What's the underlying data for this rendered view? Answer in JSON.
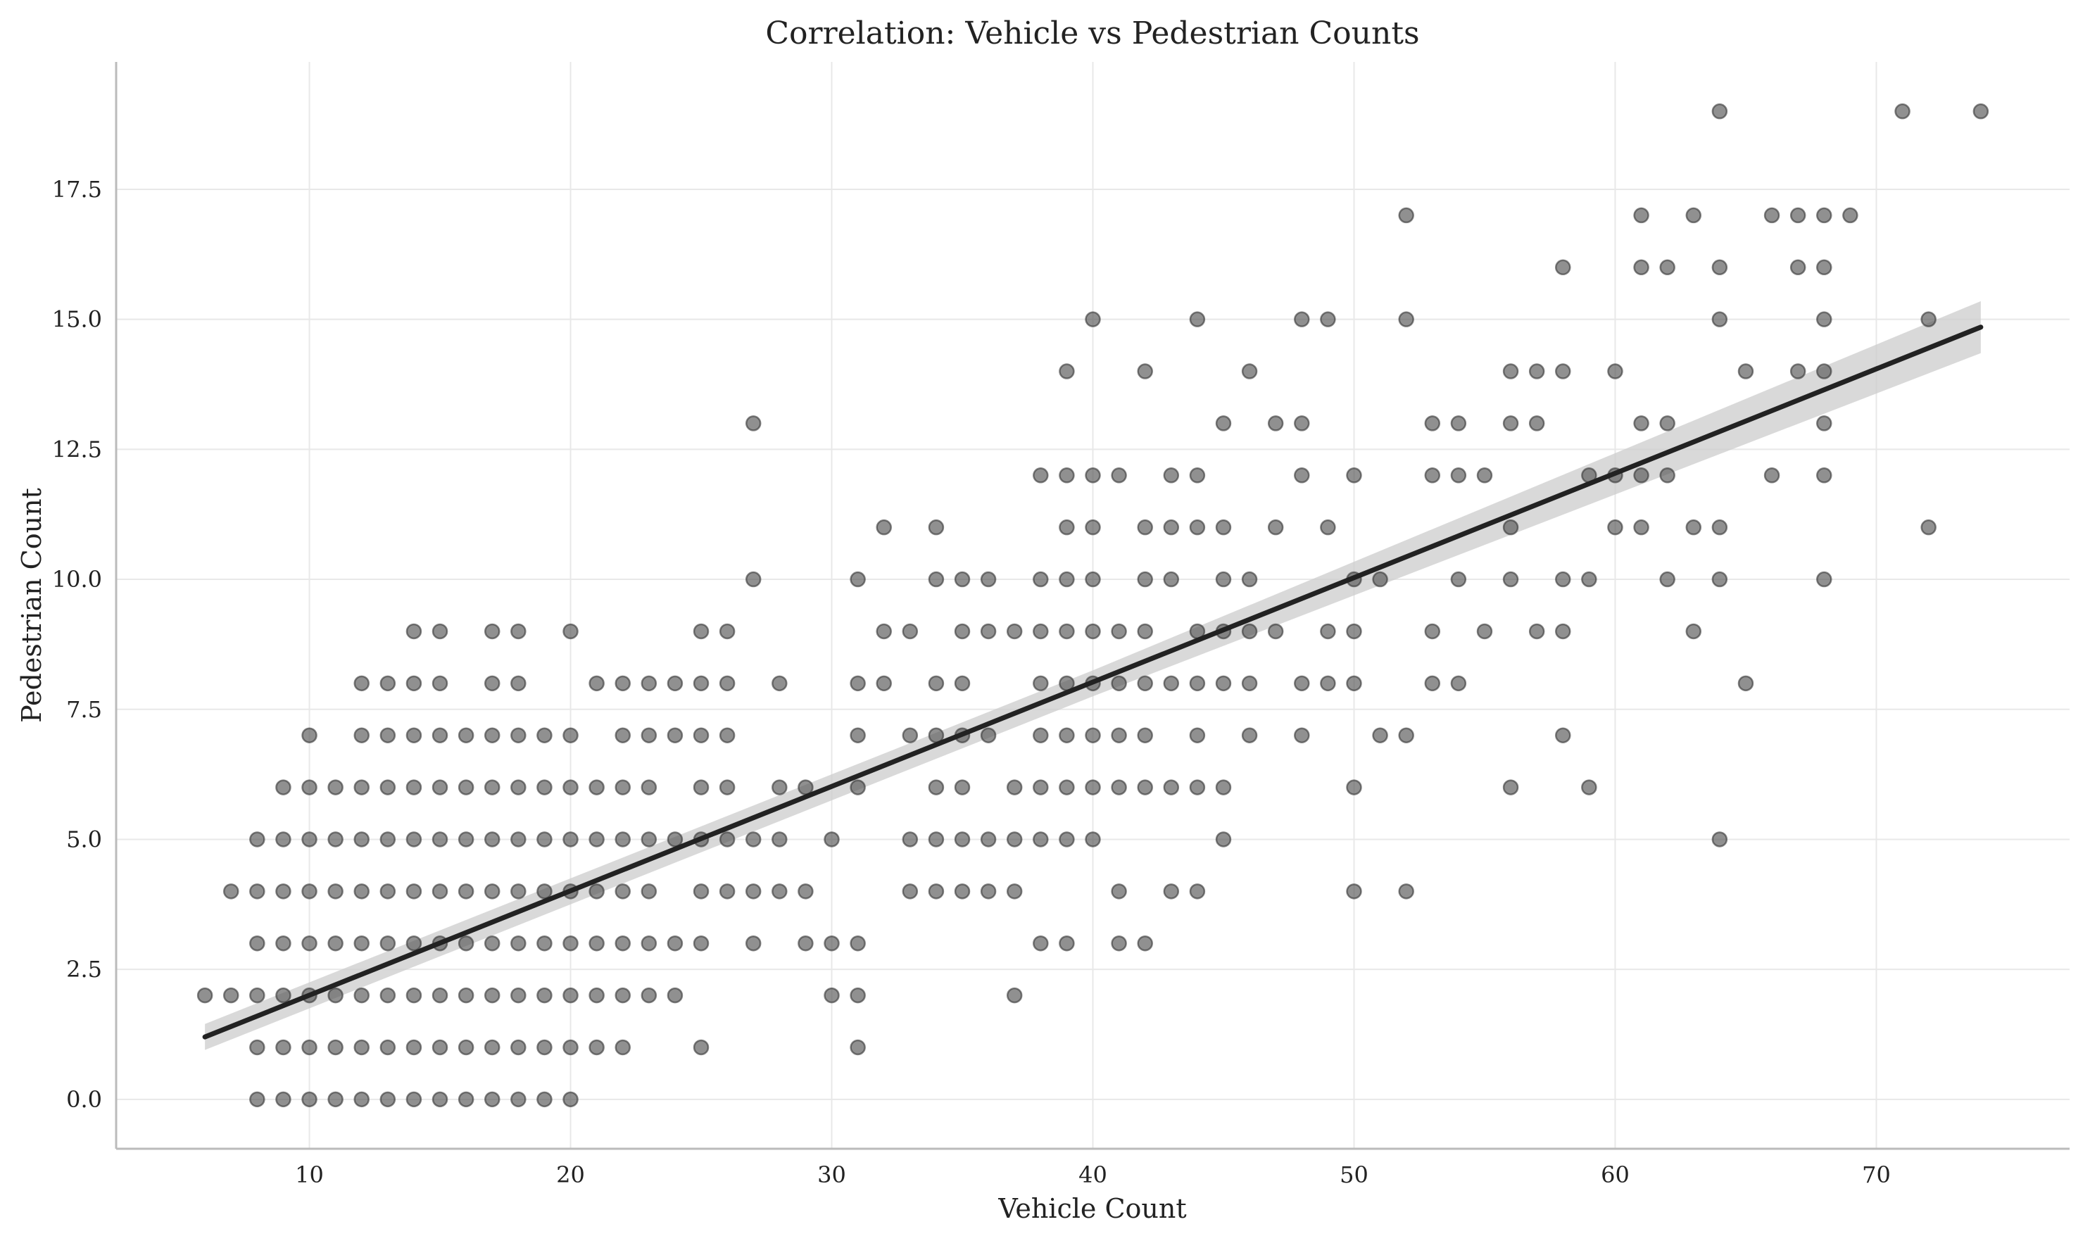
{
  "chart_data": {
    "type": "scatter",
    "title": "Correlation: Vehicle vs Pedestrian Counts",
    "xlabel": "Vehicle Count",
    "ylabel": "Pedestrian Count",
    "xlim": [
      2.6,
      77.4
    ],
    "ylim": [
      -0.95,
      19.95
    ],
    "xticks": [
      10,
      20,
      30,
      40,
      50,
      60,
      70
    ],
    "yticks": [
      0.0,
      2.5,
      5.0,
      7.5,
      10.0,
      12.5,
      15.0,
      17.5
    ],
    "xtick_labels": [
      "10",
      "20",
      "30",
      "40",
      "50",
      "60",
      "70"
    ],
    "ytick_labels": [
      "0.0",
      "2.5",
      "5.0",
      "7.5",
      "10.0",
      "12.5",
      "15.0",
      "17.5"
    ],
    "grid": true,
    "point_color": "#555555",
    "line_color": "#222222",
    "band_color": "#cccccc",
    "points": [
      [
        6,
        2
      ],
      [
        7,
        2
      ],
      [
        7,
        4
      ],
      [
        8,
        0
      ],
      [
        8,
        1
      ],
      [
        8,
        2
      ],
      [
        8,
        3
      ],
      [
        8,
        4
      ],
      [
        8,
        5
      ],
      [
        9,
        0
      ],
      [
        9,
        1
      ],
      [
        9,
        2
      ],
      [
        9,
        3
      ],
      [
        9,
        4
      ],
      [
        9,
        5
      ],
      [
        9,
        6
      ],
      [
        10,
        0
      ],
      [
        10,
        1
      ],
      [
        10,
        2
      ],
      [
        10,
        3
      ],
      [
        10,
        4
      ],
      [
        10,
        5
      ],
      [
        10,
        6
      ],
      [
        10,
        7
      ],
      [
        11,
        0
      ],
      [
        11,
        1
      ],
      [
        11,
        2
      ],
      [
        11,
        3
      ],
      [
        11,
        4
      ],
      [
        11,
        5
      ],
      [
        11,
        6
      ],
      [
        12,
        0
      ],
      [
        12,
        1
      ],
      [
        12,
        2
      ],
      [
        12,
        3
      ],
      [
        12,
        4
      ],
      [
        12,
        5
      ],
      [
        12,
        6
      ],
      [
        12,
        7
      ],
      [
        12,
        8
      ],
      [
        13,
        0
      ],
      [
        13,
        1
      ],
      [
        13,
        2
      ],
      [
        13,
        3
      ],
      [
        13,
        4
      ],
      [
        13,
        5
      ],
      [
        13,
        6
      ],
      [
        13,
        7
      ],
      [
        13,
        8
      ],
      [
        14,
        0
      ],
      [
        14,
        1
      ],
      [
        14,
        2
      ],
      [
        14,
        3
      ],
      [
        14,
        4
      ],
      [
        14,
        5
      ],
      [
        14,
        6
      ],
      [
        14,
        7
      ],
      [
        14,
        8
      ],
      [
        14,
        9
      ],
      [
        15,
        0
      ],
      [
        15,
        1
      ],
      [
        15,
        2
      ],
      [
        15,
        3
      ],
      [
        15,
        4
      ],
      [
        15,
        5
      ],
      [
        15,
        6
      ],
      [
        15,
        7
      ],
      [
        15,
        8
      ],
      [
        15,
        9
      ],
      [
        16,
        0
      ],
      [
        16,
        1
      ],
      [
        16,
        2
      ],
      [
        16,
        3
      ],
      [
        16,
        4
      ],
      [
        16,
        5
      ],
      [
        16,
        6
      ],
      [
        16,
        7
      ],
      [
        17,
        0
      ],
      [
        17,
        1
      ],
      [
        17,
        2
      ],
      [
        17,
        3
      ],
      [
        17,
        4
      ],
      [
        17,
        5
      ],
      [
        17,
        6
      ],
      [
        17,
        7
      ],
      [
        17,
        8
      ],
      [
        17,
        9
      ],
      [
        18,
        0
      ],
      [
        18,
        1
      ],
      [
        18,
        2
      ],
      [
        18,
        3
      ],
      [
        18,
        4
      ],
      [
        18,
        5
      ],
      [
        18,
        6
      ],
      [
        18,
        7
      ],
      [
        18,
        8
      ],
      [
        18,
        9
      ],
      [
        19,
        0
      ],
      [
        19,
        1
      ],
      [
        19,
        2
      ],
      [
        19,
        3
      ],
      [
        19,
        4
      ],
      [
        19,
        5
      ],
      [
        19,
        6
      ],
      [
        19,
        7
      ],
      [
        20,
        0
      ],
      [
        20,
        1
      ],
      [
        20,
        2
      ],
      [
        20,
        3
      ],
      [
        20,
        4
      ],
      [
        20,
        5
      ],
      [
        20,
        6
      ],
      [
        20,
        7
      ],
      [
        20,
        9
      ],
      [
        21,
        1
      ],
      [
        21,
        2
      ],
      [
        21,
        3
      ],
      [
        21,
        4
      ],
      [
        21,
        5
      ],
      [
        21,
        6
      ],
      [
        21,
        8
      ],
      [
        22,
        1
      ],
      [
        22,
        2
      ],
      [
        22,
        3
      ],
      [
        22,
        4
      ],
      [
        22,
        5
      ],
      [
        22,
        6
      ],
      [
        22,
        7
      ],
      [
        22,
        8
      ],
      [
        23,
        2
      ],
      [
        23,
        3
      ],
      [
        23,
        4
      ],
      [
        23,
        5
      ],
      [
        23,
        6
      ],
      [
        23,
        7
      ],
      [
        23,
        8
      ],
      [
        24,
        2
      ],
      [
        24,
        3
      ],
      [
        24,
        5
      ],
      [
        24,
        7
      ],
      [
        24,
        8
      ],
      [
        25,
        1
      ],
      [
        25,
        3
      ],
      [
        25,
        4
      ],
      [
        25,
        5
      ],
      [
        25,
        6
      ],
      [
        25,
        7
      ],
      [
        25,
        8
      ],
      [
        25,
        9
      ],
      [
        26,
        4
      ],
      [
        26,
        5
      ],
      [
        26,
        6
      ],
      [
        26,
        7
      ],
      [
        26,
        8
      ],
      [
        26,
        9
      ],
      [
        27,
        3
      ],
      [
        27,
        4
      ],
      [
        27,
        5
      ],
      [
        27,
        10
      ],
      [
        27,
        13
      ],
      [
        28,
        4
      ],
      [
        28,
        5
      ],
      [
        28,
        6
      ],
      [
        28,
        8
      ],
      [
        29,
        3
      ],
      [
        29,
        4
      ],
      [
        29,
        6
      ],
      [
        30,
        2
      ],
      [
        30,
        3
      ],
      [
        30,
        5
      ],
      [
        31,
        1
      ],
      [
        31,
        2
      ],
      [
        31,
        3
      ],
      [
        31,
        6
      ],
      [
        31,
        7
      ],
      [
        31,
        8
      ],
      [
        31,
        10
      ],
      [
        32,
        8
      ],
      [
        32,
        9
      ],
      [
        32,
        11
      ],
      [
        33,
        4
      ],
      [
        33,
        5
      ],
      [
        33,
        7
      ],
      [
        33,
        9
      ],
      [
        34,
        4
      ],
      [
        34,
        5
      ],
      [
        34,
        6
      ],
      [
        34,
        7
      ],
      [
        34,
        8
      ],
      [
        34,
        10
      ],
      [
        34,
        11
      ],
      [
        35,
        4
      ],
      [
        35,
        5
      ],
      [
        35,
        6
      ],
      [
        35,
        7
      ],
      [
        35,
        8
      ],
      [
        35,
        9
      ],
      [
        35,
        10
      ],
      [
        36,
        4
      ],
      [
        36,
        5
      ],
      [
        36,
        7
      ],
      [
        36,
        9
      ],
      [
        36,
        10
      ],
      [
        37,
        2
      ],
      [
        37,
        4
      ],
      [
        37,
        5
      ],
      [
        37,
        6
      ],
      [
        37,
        9
      ],
      [
        38,
        3
      ],
      [
        38,
        5
      ],
      [
        38,
        6
      ],
      [
        38,
        7
      ],
      [
        38,
        8
      ],
      [
        38,
        9
      ],
      [
        38,
        10
      ],
      [
        38,
        12
      ],
      [
        39,
        3
      ],
      [
        39,
        5
      ],
      [
        39,
        6
      ],
      [
        39,
        7
      ],
      [
        39,
        8
      ],
      [
        39,
        9
      ],
      [
        39,
        10
      ],
      [
        39,
        11
      ],
      [
        39,
        12
      ],
      [
        39,
        14
      ],
      [
        40,
        5
      ],
      [
        40,
        6
      ],
      [
        40,
        7
      ],
      [
        40,
        8
      ],
      [
        40,
        9
      ],
      [
        40,
        10
      ],
      [
        40,
        11
      ],
      [
        40,
        12
      ],
      [
        40,
        15
      ],
      [
        41,
        3
      ],
      [
        41,
        4
      ],
      [
        41,
        6
      ],
      [
        41,
        7
      ],
      [
        41,
        8
      ],
      [
        41,
        9
      ],
      [
        41,
        12
      ],
      [
        42,
        3
      ],
      [
        42,
        6
      ],
      [
        42,
        7
      ],
      [
        42,
        8
      ],
      [
        42,
        9
      ],
      [
        42,
        10
      ],
      [
        42,
        11
      ],
      [
        42,
        14
      ],
      [
        43,
        4
      ],
      [
        43,
        6
      ],
      [
        43,
        8
      ],
      [
        43,
        10
      ],
      [
        43,
        11
      ],
      [
        43,
        12
      ],
      [
        44,
        4
      ],
      [
        44,
        6
      ],
      [
        44,
        7
      ],
      [
        44,
        8
      ],
      [
        44,
        9
      ],
      [
        44,
        11
      ],
      [
        44,
        12
      ],
      [
        44,
        15
      ],
      [
        45,
        5
      ],
      [
        45,
        6
      ],
      [
        45,
        8
      ],
      [
        45,
        9
      ],
      [
        45,
        10
      ],
      [
        45,
        11
      ],
      [
        45,
        13
      ],
      [
        46,
        7
      ],
      [
        46,
        8
      ],
      [
        46,
        9
      ],
      [
        46,
        10
      ],
      [
        46,
        14
      ],
      [
        47,
        9
      ],
      [
        47,
        11
      ],
      [
        47,
        13
      ],
      [
        48,
        7
      ],
      [
        48,
        8
      ],
      [
        48,
        12
      ],
      [
        48,
        13
      ],
      [
        48,
        15
      ],
      [
        49,
        8
      ],
      [
        49,
        9
      ],
      [
        49,
        11
      ],
      [
        49,
        15
      ],
      [
        50,
        4
      ],
      [
        50,
        6
      ],
      [
        50,
        8
      ],
      [
        50,
        9
      ],
      [
        50,
        10
      ],
      [
        50,
        12
      ],
      [
        51,
        7
      ],
      [
        51,
        10
      ],
      [
        52,
        4
      ],
      [
        52,
        7
      ],
      [
        52,
        15
      ],
      [
        52,
        17
      ],
      [
        53,
        8
      ],
      [
        53,
        9
      ],
      [
        53,
        12
      ],
      [
        53,
        13
      ],
      [
        54,
        8
      ],
      [
        54,
        10
      ],
      [
        54,
        12
      ],
      [
        54,
        13
      ],
      [
        55,
        9
      ],
      [
        55,
        12
      ],
      [
        56,
        6
      ],
      [
        56,
        10
      ],
      [
        56,
        11
      ],
      [
        56,
        13
      ],
      [
        56,
        14
      ],
      [
        57,
        9
      ],
      [
        57,
        13
      ],
      [
        57,
        14
      ],
      [
        58,
        7
      ],
      [
        58,
        9
      ],
      [
        58,
        10
      ],
      [
        58,
        14
      ],
      [
        58,
        16
      ],
      [
        59,
        6
      ],
      [
        59,
        10
      ],
      [
        59,
        12
      ],
      [
        60,
        11
      ],
      [
        60,
        12
      ],
      [
        60,
        14
      ],
      [
        61,
        11
      ],
      [
        61,
        12
      ],
      [
        61,
        13
      ],
      [
        61,
        16
      ],
      [
        61,
        17
      ],
      [
        62,
        10
      ],
      [
        62,
        12
      ],
      [
        62,
        13
      ],
      [
        62,
        16
      ],
      [
        63,
        9
      ],
      [
        63,
        11
      ],
      [
        63,
        17
      ],
      [
        64,
        5
      ],
      [
        64,
        10
      ],
      [
        64,
        11
      ],
      [
        64,
        15
      ],
      [
        64,
        16
      ],
      [
        64,
        19
      ],
      [
        65,
        8
      ],
      [
        65,
        14
      ],
      [
        66,
        12
      ],
      [
        66,
        17
      ],
      [
        67,
        14
      ],
      [
        67,
        16
      ],
      [
        67,
        17
      ],
      [
        68,
        10
      ],
      [
        68,
        12
      ],
      [
        68,
        13
      ],
      [
        68,
        14
      ],
      [
        68,
        15
      ],
      [
        68,
        16
      ],
      [
        68,
        17
      ],
      [
        69,
        17
      ],
      [
        71,
        19
      ],
      [
        72,
        11
      ],
      [
        72,
        15
      ],
      [
        74,
        19
      ]
    ],
    "regression": {
      "x_start": 6,
      "y_start": 1.2,
      "x_end": 74,
      "y_end": 14.85,
      "band": [
        [
          6,
          0.95,
          1.45
        ],
        [
          40,
          7.75,
          8.25
        ],
        [
          74,
          14.35,
          15.35
        ]
      ]
    }
  }
}
